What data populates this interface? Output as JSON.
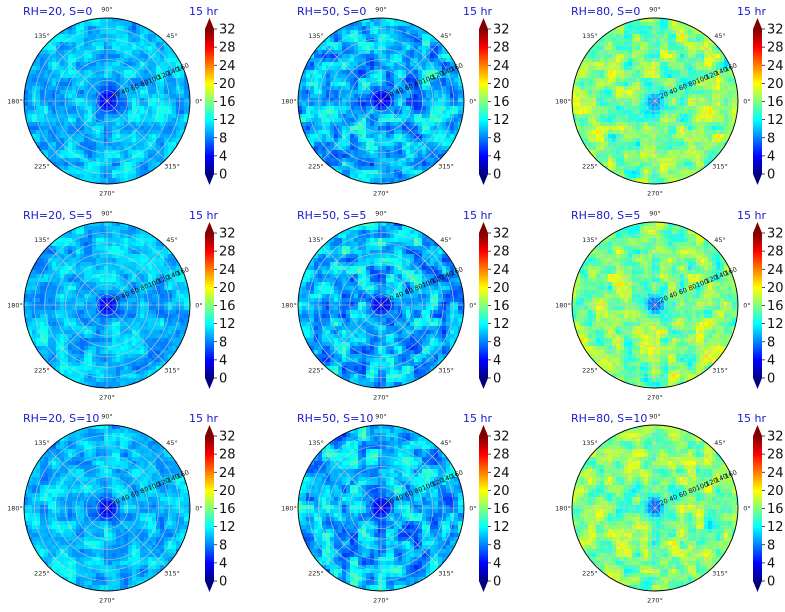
{
  "chart_data": [
    {
      "type": "heatmap",
      "projection": "polar",
      "title_left": "RH=20, S=0",
      "title_right": "15 hr",
      "angular_ticks": [
        "90°",
        "45°",
        "0°",
        "315°",
        "270°",
        "225°",
        "180°",
        "135°"
      ],
      "radial_ticks": [
        "20",
        "40",
        "60",
        "80",
        "100",
        "120",
        "140",
        "160"
      ],
      "rlim": [
        0,
        160
      ],
      "colorbar": {
        "ticks": [
          "0",
          "4",
          "8",
          "12",
          "16",
          "20",
          "24",
          "28",
          "32"
        ],
        "range": [
          0,
          32
        ],
        "extend": "both",
        "colormap": "jet"
      },
      "center_value": 3,
      "background_value": 10,
      "variability": 2.5
    },
    {
      "type": "heatmap",
      "projection": "polar",
      "title_left": "RH=50, S=0",
      "title_right": "15 hr",
      "angular_ticks": [
        "90°",
        "45°",
        "0°",
        "315°",
        "270°",
        "225°",
        "180°",
        "135°"
      ],
      "radial_ticks": [
        "20",
        "40",
        "60",
        "80",
        "100",
        "120",
        "140",
        "160"
      ],
      "rlim": [
        0,
        160
      ],
      "colorbar": {
        "ticks": [
          "0",
          "4",
          "8",
          "12",
          "16",
          "20",
          "24",
          "28",
          "32"
        ],
        "range": [
          0,
          32
        ],
        "extend": "both",
        "colormap": "jet"
      },
      "center_value": 3,
      "background_value": 10,
      "variability": 4
    },
    {
      "type": "heatmap",
      "projection": "polar",
      "title_left": "RH=80, S=0",
      "title_right": "15 hr",
      "angular_ticks": [
        "90°",
        "45°",
        "0°",
        "315°",
        "270°",
        "225°",
        "180°",
        "135°"
      ],
      "radial_ticks": [
        "20",
        "40",
        "60",
        "80",
        "100",
        "120",
        "140",
        "160"
      ],
      "rlim": [
        0,
        160
      ],
      "colorbar": {
        "ticks": [
          "0",
          "4",
          "8",
          "12",
          "16",
          "20",
          "24",
          "28",
          "32"
        ],
        "range": [
          0,
          32
        ],
        "extend": "both",
        "colormap": "jet"
      },
      "center_value": 8,
      "background_value": 16,
      "variability": 4
    },
    {
      "type": "heatmap",
      "projection": "polar",
      "title_left": "RH=20, S=5",
      "title_right": "15 hr",
      "angular_ticks": [
        "90°",
        "45°",
        "0°",
        "315°",
        "270°",
        "225°",
        "180°",
        "135°"
      ],
      "radial_ticks": [
        "20",
        "40",
        "60",
        "80",
        "100",
        "120",
        "140",
        "160"
      ],
      "rlim": [
        0,
        160
      ],
      "colorbar": {
        "ticks": [
          "0",
          "4",
          "8",
          "12",
          "16",
          "20",
          "24",
          "28",
          "32"
        ],
        "range": [
          0,
          32
        ],
        "extend": "both",
        "colormap": "jet"
      },
      "center_value": 3,
      "background_value": 10,
      "variability": 2.5
    },
    {
      "type": "heatmap",
      "projection": "polar",
      "title_left": "RH=50, S=5",
      "title_right": "15 hr",
      "angular_ticks": [
        "90°",
        "45°",
        "0°",
        "315°",
        "270°",
        "225°",
        "180°",
        "135°"
      ],
      "radial_ticks": [
        "20",
        "40",
        "60",
        "80",
        "100",
        "120",
        "140",
        "160"
      ],
      "rlim": [
        0,
        160
      ],
      "colorbar": {
        "ticks": [
          "0",
          "4",
          "8",
          "12",
          "16",
          "20",
          "24",
          "28",
          "32"
        ],
        "range": [
          0,
          32
        ],
        "extend": "both",
        "colormap": "jet"
      },
      "center_value": 3,
      "background_value": 10,
      "variability": 4
    },
    {
      "type": "heatmap",
      "projection": "polar",
      "title_left": "RH=80, S=5",
      "title_right": "15 hr",
      "angular_ticks": [
        "90°",
        "45°",
        "0°",
        "315°",
        "270°",
        "225°",
        "180°",
        "135°"
      ],
      "radial_ticks": [
        "20",
        "40",
        "60",
        "80",
        "100",
        "120",
        "140",
        "160"
      ],
      "rlim": [
        0,
        160
      ],
      "colorbar": {
        "ticks": [
          "0",
          "4",
          "8",
          "12",
          "16",
          "20",
          "24",
          "28",
          "32"
        ],
        "range": [
          0,
          32
        ],
        "extend": "both",
        "colormap": "jet"
      },
      "center_value": 6,
      "background_value": 16,
      "variability": 4
    },
    {
      "type": "heatmap",
      "projection": "polar",
      "title_left": "RH=20, S=10",
      "title_right": "15 hr",
      "angular_ticks": [
        "90°",
        "45°",
        "0°",
        "315°",
        "270°",
        "225°",
        "180°",
        "135°"
      ],
      "radial_ticks": [
        "20",
        "40",
        "60",
        "80",
        "100",
        "120",
        "140",
        "160"
      ],
      "rlim": [
        0,
        160
      ],
      "colorbar": {
        "ticks": [
          "0",
          "4",
          "8",
          "12",
          "16",
          "20",
          "24",
          "28",
          "32"
        ],
        "range": [
          0,
          32
        ],
        "extend": "both",
        "colormap": "jet"
      },
      "center_value": 3,
      "background_value": 10,
      "variability": 2.5
    },
    {
      "type": "heatmap",
      "projection": "polar",
      "title_left": "RH=50, S=10",
      "title_right": "15 hr",
      "angular_ticks": [
        "90°",
        "45°",
        "0°",
        "315°",
        "270°",
        "225°",
        "180°",
        "135°"
      ],
      "radial_ticks": [
        "20",
        "40",
        "60",
        "80",
        "100",
        "120",
        "140",
        "160"
      ],
      "rlim": [
        0,
        160
      ],
      "colorbar": {
        "ticks": [
          "0",
          "4",
          "8",
          "12",
          "16",
          "20",
          "24",
          "28",
          "32"
        ],
        "range": [
          0,
          32
        ],
        "extend": "both",
        "colormap": "jet"
      },
      "center_value": 3,
      "background_value": 10,
      "variability": 4
    },
    {
      "type": "heatmap",
      "projection": "polar",
      "title_left": "RH=80, S=10",
      "title_right": "15 hr",
      "angular_ticks": [
        "90°",
        "45°",
        "0°",
        "315°",
        "270°",
        "225°",
        "180°",
        "135°"
      ],
      "radial_ticks": [
        "20",
        "40",
        "60",
        "80",
        "100",
        "120",
        "140",
        "160"
      ],
      "rlim": [
        0,
        160
      ],
      "colorbar": {
        "ticks": [
          "0",
          "4",
          "8",
          "12",
          "16",
          "20",
          "24",
          "28",
          "32"
        ],
        "range": [
          0,
          32
        ],
        "extend": "both",
        "colormap": "jet"
      },
      "center_value": 6,
      "background_value": 16,
      "variability": 4
    }
  ]
}
